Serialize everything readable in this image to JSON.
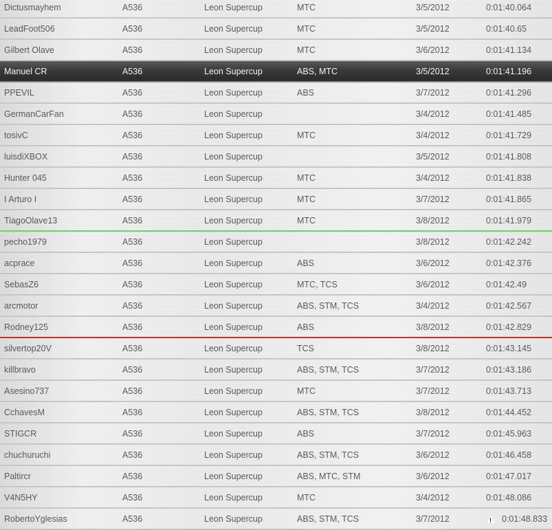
{
  "leaderboard": {
    "rows": [
      {
        "driver": "Dictusmayhem",
        "car": "A536",
        "model": "Leon Supercup",
        "aids": "MTC",
        "date": "3/5/2012",
        "time": "0:01:40.064"
      },
      {
        "driver": "LeadFoot506",
        "car": "A536",
        "model": "Leon Supercup",
        "aids": "MTC",
        "date": "3/5/2012",
        "time": "0:01:40.65"
      },
      {
        "driver": "Gilbert Olave",
        "car": "A536",
        "model": "Leon Supercup",
        "aids": "MTC",
        "date": "3/6/2012",
        "time": "0:01:41.134"
      },
      {
        "driver": "Manuel CR",
        "car": "A536",
        "model": "Leon Supercup",
        "aids": "ABS, MTC",
        "date": "3/5/2012",
        "time": "0:01:41.196",
        "selected": true
      },
      {
        "driver": "PPEVIL",
        "car": "A536",
        "model": "Leon Supercup",
        "aids": "ABS",
        "date": "3/7/2012",
        "time": "0:01:41.296"
      },
      {
        "driver": "GermanCarFan",
        "car": "A536",
        "model": "Leon Supercup",
        "aids": "",
        "date": "3/4/2012",
        "time": "0:01:41.485"
      },
      {
        "driver": "tosivC",
        "car": "A536",
        "model": "Leon Supercup",
        "aids": "MTC",
        "date": "3/4/2012",
        "time": "0:01:41.729"
      },
      {
        "driver": "luisdiXBOX",
        "car": "A536",
        "model": "Leon Supercup",
        "aids": "",
        "date": "3/5/2012",
        "time": "0:01:41.808"
      },
      {
        "driver": "Hunter 045",
        "car": "A536",
        "model": "Leon Supercup",
        "aids": "MTC",
        "date": "3/4/2012",
        "time": "0:01:41.838"
      },
      {
        "driver": "I Arturo I",
        "car": "A536",
        "model": "Leon Supercup",
        "aids": "MTC",
        "date": "3/7/2012",
        "time": "0:01:41.865"
      },
      {
        "driver": "TiagoOlave13",
        "car": "A536",
        "model": "Leon Supercup",
        "aids": "MTC",
        "date": "3/8/2012",
        "time": "0:01:41.979",
        "divider": "green"
      },
      {
        "driver": "pecho1979",
        "car": "A536",
        "model": "Leon Supercup",
        "aids": "",
        "date": "3/8/2012",
        "time": "0:01:42.242"
      },
      {
        "driver": "acprace",
        "car": "A536",
        "model": "Leon Supercup",
        "aids": "ABS",
        "date": "3/6/2012",
        "time": "0:01:42.376"
      },
      {
        "driver": "SebasZ6",
        "car": "A536",
        "model": "Leon Supercup",
        "aids": "MTC, TCS",
        "date": "3/6/2012",
        "time": "0:01:42.49"
      },
      {
        "driver": "arcmotor",
        "car": "A536",
        "model": "Leon Supercup",
        "aids": "ABS, STM, TCS",
        "date": "3/4/2012",
        "time": "0:01:42.567"
      },
      {
        "driver": "Rodney125",
        "car": "A536",
        "model": "Leon Supercup",
        "aids": "ABS",
        "date": "3/8/2012",
        "time": "0:01:42.829",
        "divider": "red"
      },
      {
        "driver": "silvertop20V",
        "car": "A536",
        "model": "Leon Supercup",
        "aids": "TCS",
        "date": "3/8/2012",
        "time": "0:01:43.145"
      },
      {
        "driver": "killbravo",
        "car": "A536",
        "model": "Leon Supercup",
        "aids": "ABS, STM, TCS",
        "date": "3/7/2012",
        "time": "0:01:43.186"
      },
      {
        "driver": "Asesino737",
        "car": "A536",
        "model": "Leon Supercup",
        "aids": "MTC",
        "date": "3/7/2012",
        "time": "0:01:43.713"
      },
      {
        "driver": "CchavesM",
        "car": "A536",
        "model": "Leon Supercup",
        "aids": "ABS, STM, TCS",
        "date": "3/8/2012",
        "time": "0:01:44.452"
      },
      {
        "driver": "STIGCR",
        "car": "A536",
        "model": "Leon Supercup",
        "aids": "ABS",
        "date": "3/7/2012",
        "time": "0:01:45.963"
      },
      {
        "driver": "chuchuruchi",
        "car": "A536",
        "model": "Leon Supercup",
        "aids": "ABS, STM, TCS",
        "date": "3/6/2012",
        "time": "0:01:46.458"
      },
      {
        "driver": "Paltircr",
        "car": "A536",
        "model": "Leon Supercup",
        "aids": "ABS, MTC, STM",
        "date": "3/6/2012",
        "time": "0:01:47.017"
      },
      {
        "driver": "V4N5HY",
        "car": "A536",
        "model": "Leon Supercup",
        "aids": "MTC",
        "date": "3/4/2012",
        "time": "0:01:48.086"
      },
      {
        "driver": "RobertoYglesias",
        "car": "A536",
        "model": "Leon Supercup",
        "aids": "ABS, STM, TCS",
        "date": "3/7/2012",
        "time": "0:01:48.833",
        "warning": true,
        "warning_icon": "warning-triangle-icon",
        "warning_glyph": "!"
      }
    ],
    "colors": {
      "selected_bg": "#333333",
      "green_divider": "#5cdc5c",
      "red_divider": "#d02828"
    }
  }
}
